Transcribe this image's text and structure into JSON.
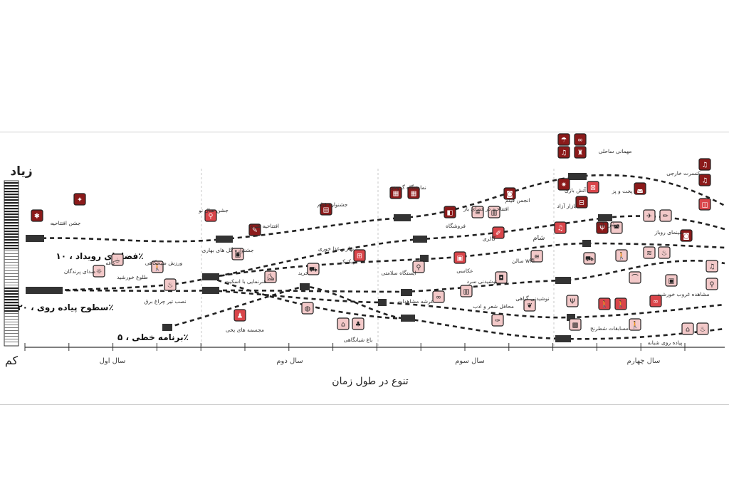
{
  "axis": {
    "y_high": "زیاد",
    "y_low": "کم",
    "x_title": "تنوع در طول زمان",
    "years": [
      "سال اول",
      "سال دوم",
      "سال سوم",
      "سال چهارم"
    ]
  },
  "tracks": {
    "events": "فضاهای رویداد ، ۱۰٪",
    "walkway": "سطوح پیاده روی ، ۲۰٪",
    "linear": "برنامه خطی ، ۵٪"
  },
  "labels": {
    "opening_fest": "جشن افتتاحیه",
    "cafe": "کافه",
    "bird_sounds": "صدای پرندگان",
    "sunrise": "طلوع خورشید",
    "morning_sport": "ورزش صبحگاهی",
    "lightning": "نصب تیر چراغ برق",
    "new_year": "جشن سال نو",
    "flower_fest": "جشنواره گل های بهاری",
    "art_opening": "افتتاحیه هنری",
    "skating": "هنرنمایی با اسکیت",
    "ice_sculpture": "مجسمه های یخی",
    "film_fest": "جشنواره فیلم",
    "lunch": "نهار و غذا خوری",
    "shopping": "خرید",
    "picnic": "پیکنیک",
    "nightly_garden": "باغ شبانگاهی",
    "group_exhibit": "نمایشگاه گروهی",
    "bike_station": "ایستگاه سلامتی",
    "viewing_deck": "عرشه مشاهدات",
    "photography": "عکاسی",
    "cold_drinks": "نوشیدنی سرد",
    "poetry": "محافل شعر و ادب",
    "herbal_drinks": "نوشیدنی گیاهی",
    "shop": "فروشگاه",
    "open_air_opening": "افتتاحیه در فضای باز",
    "film_club": "انجمن فیلم",
    "gallery": "گالری",
    "dinner": "شام",
    "wifi_hall": "سالن wifi",
    "beach_party": "مهمانی ساحلی",
    "fire_play": "آتش بازی",
    "free_market": "بازار آزاد",
    "cook": "پخت و پز",
    "yalda": "جشن یلدا",
    "outdoor_concert": "کنسرت خارجی",
    "open_cinema": "سینمای روباز",
    "sunset": "مشاهده غروب خورشید",
    "chess": "مسابقات شطرنج",
    "night_walk": "پیاده روی شبانه"
  },
  "colors": {
    "dark": "#8b1a1a",
    "mid": "#d9454a",
    "light": "#f3c9c9"
  }
}
